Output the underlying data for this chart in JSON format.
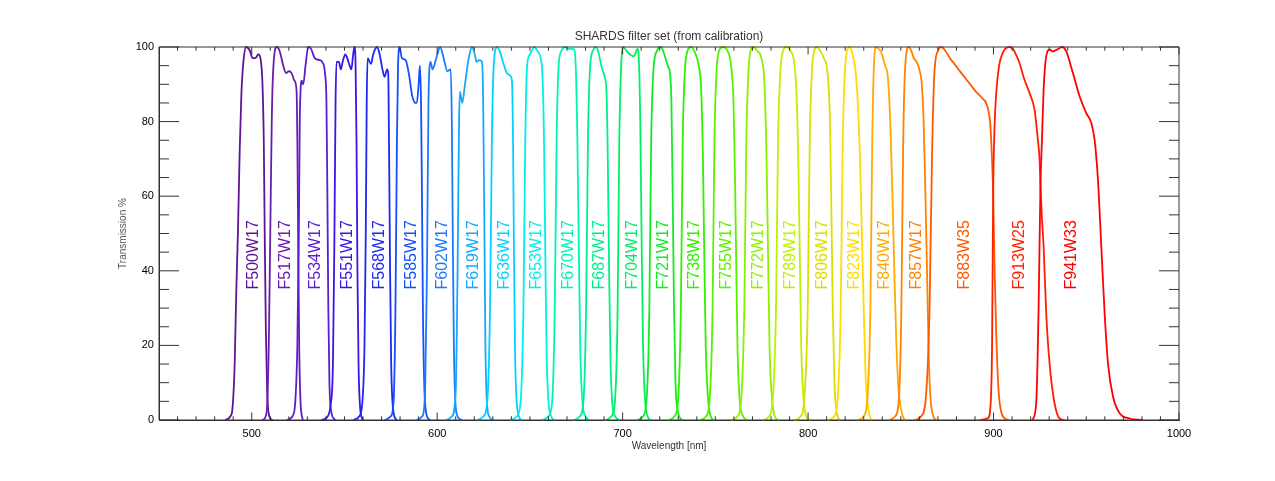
{
  "chart_data": {
    "type": "line",
    "title": "SHARDS filter set (from calibration)",
    "xlabel": "Wavelength [nm]",
    "ylabel": "Transmission %",
    "marker": "none",
    "line_style": "solid",
    "xlim": [
      450,
      1000
    ],
    "ylim": [
      0,
      100
    ],
    "xticks": [
      {
        "value": 460,
        "label": null
      },
      {
        "value": 470,
        "label": null
      },
      {
        "value": 480,
        "label": null
      },
      {
        "value": 490,
        "label": null
      },
      500,
      {
        "value": 510,
        "label": null
      },
      {
        "value": 520,
        "label": null
      },
      {
        "value": 530,
        "label": null
      },
      {
        "value": 540,
        "label": null
      },
      {
        "value": 550,
        "label": null
      },
      {
        "value": 560,
        "label": null
      },
      {
        "value": 570,
        "label": null
      },
      {
        "value": 580,
        "label": null
      },
      {
        "value": 590,
        "label": null
      },
      600,
      {
        "value": 610,
        "label": null
      },
      {
        "value": 620,
        "label": null
      },
      {
        "value": 630,
        "label": null
      },
      {
        "value": 640,
        "label": null
      },
      {
        "value": 650,
        "label": null
      },
      {
        "value": 660,
        "label": null
      },
      {
        "value": 670,
        "label": null
      },
      {
        "value": 680,
        "label": null
      },
      {
        "value": 690,
        "label": null
      },
      700,
      {
        "value": 710,
        "label": null
      },
      {
        "value": 720,
        "label": null
      },
      {
        "value": 730,
        "label": null
      },
      {
        "value": 740,
        "label": null
      },
      {
        "value": 750,
        "label": null
      },
      {
        "value": 760,
        "label": null
      },
      {
        "value": 770,
        "label": null
      },
      {
        "value": 780,
        "label": null
      },
      {
        "value": 790,
        "label": null
      },
      800,
      {
        "value": 810,
        "label": null
      },
      {
        "value": 820,
        "label": null
      },
      {
        "value": 830,
        "label": null
      },
      {
        "value": 840,
        "label": null
      },
      {
        "value": 850,
        "label": null
      },
      {
        "value": 860,
        "label": null
      },
      {
        "value": 870,
        "label": null
      },
      {
        "value": 880,
        "label": null
      },
      {
        "value": 890,
        "label": null
      },
      900,
      {
        "value": 910,
        "label": null
      },
      {
        "value": 920,
        "label": null
      },
      {
        "value": 930,
        "label": null
      },
      {
        "value": 940,
        "label": null
      },
      {
        "value": 950,
        "label": null
      },
      {
        "value": 960,
        "label": null
      },
      {
        "value": 970,
        "label": null
      },
      {
        "value": 980,
        "label": null
      },
      {
        "value": 990,
        "label": null
      },
      1000
    ],
    "yticks": [
      0,
      {
        "value": 5,
        "label": null
      },
      {
        "value": 10,
        "label": null
      },
      {
        "value": 15,
        "label": null
      },
      20,
      {
        "value": 25,
        "label": null
      },
      {
        "value": 30,
        "label": null
      },
      {
        "value": 35,
        "label": null
      },
      40,
      {
        "value": 45,
        "label": null
      },
      {
        "value": 50,
        "label": null
      },
      {
        "value": 55,
        "label": null
      },
      60,
      {
        "value": 65,
        "label": null
      },
      {
        "value": 70,
        "label": null
      },
      {
        "value": 75,
        "label": null
      },
      80,
      {
        "value": 85,
        "label": null
      },
      {
        "value": 90,
        "label": null
      },
      {
        "value": 95,
        "label": null
      },
      100
    ],
    "series": [
      {
        "name": "F500W17",
        "color": "#5f1496",
        "x": [
          486,
          488.5,
          489.6,
          490.8,
          491.7,
          492.6,
          493.5,
          494.4,
          495.5,
          497,
          499,
          500.5,
          502,
          503.5,
          505,
          505.8,
          506.5,
          507,
          507.6,
          508.3,
          509.5,
          511
        ],
        "values": [
          0,
          1,
          3,
          15,
          35,
          51,
          72,
          87,
          96,
          100,
          99,
          97,
          97,
          98,
          96,
          90,
          75,
          50,
          25,
          8,
          1,
          0
        ]
      },
      {
        "name": "F517W17",
        "color": "#6a1cb0",
        "x": [
          506,
          508,
          509.2,
          510,
          510.8,
          511.5,
          513.5,
          515,
          517,
          518.5,
          520,
          521.5,
          523,
          524.2,
          524.7,
          525.1,
          525.6,
          526.3,
          527.5
        ],
        "values": [
          0,
          2,
          20,
          50,
          80,
          93,
          100,
          99,
          95,
          93,
          93.5,
          93,
          91,
          88,
          70,
          45,
          20,
          5,
          0
        ]
      },
      {
        "name": "F534W17",
        "color": "#5a1ed2",
        "x": [
          519,
          522,
          523.5,
          524.6,
          525.4,
          525.9,
          526.3,
          527,
          527.8,
          529,
          530.5,
          532,
          534,
          536.5,
          538,
          539.5,
          540.3,
          540.8,
          541.3,
          541.9,
          543,
          545
        ],
        "values": [
          0,
          1,
          5,
          20,
          50,
          80,
          88,
          91,
          90,
          95,
          100,
          99.5,
          97,
          96.5,
          96,
          93,
          85,
          60,
          30,
          10,
          2,
          0
        ]
      },
      {
        "name": "F551W17",
        "color": "#3c14e6",
        "x": [
          538,
          541,
          542.5,
          543.8,
          544.6,
          545.2,
          545.7,
          547,
          548,
          549,
          550.5,
          551.5,
          552.8,
          553.7,
          554.7,
          555.4,
          556,
          556.5,
          557,
          557.6,
          558.5,
          560
        ],
        "values": [
          0,
          1,
          4,
          15,
          50,
          85,
          96,
          96,
          94,
          96,
          98,
          97,
          95,
          94,
          98,
          100,
          95,
          75,
          40,
          15,
          3,
          0
        ]
      },
      {
        "name": "F568W17",
        "color": "#1e28f0",
        "x": [
          555,
          558,
          559.7,
          560.8,
          561.5,
          562,
          562.5,
          564.3,
          565.5,
          567.5,
          569,
          570.5,
          571.6,
          573,
          573.6,
          574.1,
          574.6,
          575.2,
          576.2,
          578
        ],
        "values": [
          0,
          1,
          5,
          20,
          50,
          85,
          97,
          95.5,
          98,
          100,
          98,
          94,
          92,
          94,
          93,
          70,
          40,
          15,
          3,
          0
        ]
      },
      {
        "name": "F585W17",
        "color": "#1450ff",
        "x": [
          572,
          575,
          576.5,
          577.5,
          578.3,
          578.9,
          579.7,
          581,
          583,
          585,
          586.5,
          588.3,
          589,
          590,
          590.7,
          591.3,
          591.8,
          592.3,
          593,
          594,
          596
        ],
        "values": [
          0,
          1,
          5,
          30,
          75,
          95,
          100,
          97,
          96.5,
          92,
          87,
          85,
          85,
          90,
          95,
          85,
          60,
          30,
          10,
          2,
          0
        ]
      },
      {
        "name": "F602W17",
        "color": "#1e78ff",
        "x": [
          589,
          592,
          593.5,
          594.5,
          595.3,
          596.4,
          597.5,
          599.5,
          601.6,
          603.5,
          605.5,
          607.3,
          607.9,
          608.4,
          609,
          609.8,
          611,
          613
        ],
        "values": [
          0,
          1,
          8,
          40,
          85,
          96,
          94,
          97,
          100,
          97,
          93.5,
          94,
          80,
          50,
          20,
          5,
          1,
          0
        ]
      },
      {
        "name": "F619W17",
        "color": "#14a8ff",
        "x": [
          605,
          608,
          610,
          611,
          611.8,
          612.3,
          613.5,
          615,
          617,
          618.8,
          620.3,
          621.3,
          622.5,
          624.2,
          624.8,
          625.4,
          626,
          626.8,
          628,
          630
        ],
        "values": [
          0,
          1,
          8,
          40,
          80,
          88,
          85,
          90,
          97,
          100,
          98,
          96,
          96.5,
          96,
          85,
          55,
          20,
          5,
          1,
          0
        ]
      },
      {
        "name": "F636W17",
        "color": "#00d2ff",
        "x": [
          622,
          625,
          627,
          628.5,
          629.5,
          630.5,
          632.3,
          634,
          635.5,
          637.5,
          639,
          640.3,
          640.9,
          641.4,
          642,
          643,
          645
        ],
        "values": [
          0,
          1,
          5,
          30,
          75,
          95,
          100,
          98.5,
          96,
          93,
          92.5,
          91,
          75,
          45,
          18,
          4,
          0
        ]
      },
      {
        "name": "F653W17",
        "color": "#00f0e6",
        "x": [
          640,
          643,
          645,
          646.5,
          647.5,
          648.5,
          650,
          652.3,
          654,
          655.8,
          656.8,
          657.6,
          658.3,
          659,
          660,
          661.5,
          663
        ],
        "values": [
          0,
          1,
          5,
          30,
          75,
          95,
          98,
          100,
          99,
          97,
          92,
          75,
          45,
          18,
          5,
          1,
          0
        ]
      },
      {
        "name": "F670W17",
        "color": "#00f5b4",
        "x": [
          657,
          660,
          662,
          663.4,
          664.4,
          665.5,
          667,
          669,
          671,
          673.5,
          674.7,
          675.6,
          676.4,
          677.2,
          678.3,
          680,
          682
        ],
        "values": [
          0,
          1,
          5,
          30,
          75,
          95,
          99,
          100,
          99.5,
          99.5,
          95,
          75,
          45,
          18,
          5,
          1,
          0
        ]
      },
      {
        "name": "F687W17",
        "color": "#00f08c",
        "x": [
          674,
          677,
          679,
          680.3,
          681.3,
          682.5,
          684,
          685.6,
          687,
          688.5,
          690.3,
          691.3,
          692,
          692.7,
          693.5,
          694.5,
          696,
          698
        ],
        "values": [
          0,
          1,
          6,
          30,
          75,
          95,
          99,
          100,
          98.5,
          95,
          92,
          88,
          70,
          40,
          15,
          4,
          1,
          0
        ]
      },
      {
        "name": "F704W17",
        "color": "#00f064",
        "x": [
          691,
          694,
          696,
          697.3,
          698.2,
          699.2,
          700.3,
          702,
          704,
          706,
          708,
          708.8,
          709.5,
          710.2,
          711,
          712,
          713.5,
          715
        ],
        "values": [
          0,
          1,
          6,
          30,
          75,
          95,
          100,
          99,
          98,
          97.5,
          99.5,
          96,
          80,
          50,
          20,
          6,
          1,
          0
        ]
      },
      {
        "name": "F721W17",
        "color": "#14eb28",
        "x": [
          708,
          711,
          713,
          714.4,
          715.4,
          716.5,
          718.5,
          720.7,
          722.5,
          724.3,
          725.5,
          726.3,
          727,
          727.7,
          728.5,
          730,
          732
        ],
        "values": [
          0,
          1,
          6,
          30,
          75,
          93,
          99,
          100,
          98,
          95,
          93,
          85,
          60,
          30,
          10,
          2,
          0
        ]
      },
      {
        "name": "F738W17",
        "color": "#32f000",
        "x": [
          725,
          728,
          730,
          731.4,
          732.4,
          733.5,
          735,
          737,
          739,
          741,
          742.4,
          743.3,
          744,
          744.8,
          746,
          747.5,
          749
        ],
        "values": [
          0,
          1,
          6,
          30,
          75,
          93,
          99,
          100,
          98.5,
          95,
          88,
          70,
          45,
          20,
          6,
          1,
          0
        ]
      },
      {
        "name": "F755W17",
        "color": "#5af000",
        "x": [
          742,
          745,
          747,
          748.5,
          749.5,
          750.6,
          752,
          754,
          756.5,
          758.5,
          759.8,
          760.6,
          761.3,
          762,
          763.2,
          765,
          767
        ],
        "values": [
          0,
          1,
          6,
          30,
          75,
          93,
          99,
          100,
          99,
          95,
          85,
          65,
          40,
          18,
          5,
          1,
          0
        ]
      },
      {
        "name": "F772W17",
        "color": "#8cf000",
        "x": [
          759,
          762,
          764,
          765.6,
          766.7,
          767.8,
          769,
          770.5,
          772.5,
          774.8,
          776.5,
          777.6,
          778.4,
          779.2,
          780.5,
          782,
          784
        ],
        "values": [
          0,
          1,
          6,
          30,
          75,
          93,
          99,
          100,
          99,
          97,
          90,
          70,
          45,
          20,
          6,
          1,
          0
        ]
      },
      {
        "name": "F789W17",
        "color": "#bef000",
        "x": [
          776,
          779,
          781,
          782.7,
          783.8,
          785,
          786.5,
          788.3,
          790.5,
          792.5,
          793.7,
          794.7,
          795.5,
          796.3,
          797.5,
          799,
          801
        ],
        "values": [
          0,
          1,
          6,
          30,
          75,
          93,
          99,
          100,
          99,
          96,
          88,
          70,
          45,
          20,
          6,
          1,
          0
        ]
      },
      {
        "name": "F806W17",
        "color": "#d8e000",
        "x": [
          793,
          796,
          798,
          799.8,
          800.9,
          802,
          803.3,
          804.8,
          806.5,
          808.5,
          810.5,
          811.8,
          812.6,
          813.3,
          814.2,
          815.5,
          817
        ],
        "values": [
          0,
          1,
          6,
          30,
          75,
          93,
          99,
          100,
          99,
          97,
          93,
          80,
          55,
          30,
          10,
          2,
          0
        ]
      },
      {
        "name": "F823W17",
        "color": "#ffdc00",
        "x": [
          811,
          814,
          816,
          817.6,
          818.7,
          819.8,
          821,
          822.5,
          824,
          825.5,
          826.8,
          828,
          829,
          830,
          831,
          832.5,
          834
        ],
        "values": [
          0,
          1,
          6,
          30,
          75,
          93,
          99,
          100,
          98,
          94,
          85,
          70,
          50,
          30,
          12,
          3,
          0
        ]
      },
      {
        "name": "F840W17",
        "color": "#ffaa00",
        "x": [
          827,
          830,
          832,
          833.6,
          834.6,
          835.5,
          836.7,
          838,
          839.5,
          841.5,
          843,
          844.3,
          845.5,
          846.5,
          847.5,
          848.8,
          850.5,
          852
        ],
        "values": [
          0,
          1,
          6,
          30,
          75,
          95,
          100,
          99.5,
          98.5,
          95,
          92,
          80,
          60,
          40,
          22,
          8,
          2,
          0
        ]
      },
      {
        "name": "F857W17",
        "color": "#ff8200",
        "x": [
          844,
          847,
          849,
          850.3,
          851.3,
          852.4,
          854.3,
          856,
          857,
          858.5,
          860,
          861.3,
          862.3,
          863.3,
          864.2,
          865,
          866,
          867.5,
          869
        ],
        "values": [
          0,
          1,
          6,
          30,
          75,
          95,
          100,
          98.5,
          97,
          96,
          94,
          90,
          80,
          60,
          38,
          18,
          6,
          1,
          0
        ]
      },
      {
        "name": "F883W35",
        "color": "#ff5a00",
        "x": [
          858,
          861,
          863.5,
          865.5,
          866.8,
          868,
          870,
          871.8,
          874,
          876.5,
          879,
          882,
          885,
          888,
          890,
          892.5,
          894.5,
          896,
          897.2,
          898.2,
          899.1,
          899.8,
          900.5,
          901.4,
          902.7,
          905,
          908
        ],
        "values": [
          0,
          1,
          6,
          30,
          70,
          92,
          99,
          100,
          99,
          97,
          95.4,
          93.4,
          91.5,
          89.6,
          88.3,
          87,
          86,
          85,
          83,
          79.6,
          70.7,
          60.8,
          42,
          24,
          8,
          1,
          0
        ]
      },
      {
        "name": "F913W25",
        "color": "#ff1e00",
        "x": [
          893,
          897,
          898.5,
          899.2,
          899.8,
          900.5,
          901.5,
          903,
          905,
          908.5,
          910.5,
          912.5,
          914,
          916.5,
          919.4,
          922.1,
          923.9,
          924.8,
          925.3,
          926,
          927,
          928.4,
          930.2,
          932.9,
          935.6,
          938
        ],
        "values": [
          0,
          0.5,
          5,
          20,
          61,
          78,
          88,
          95,
          98.5,
          100,
          99.5,
          97.5,
          95.7,
          91.5,
          87.7,
          83.2,
          75.1,
          70,
          63,
          55,
          46.5,
          28.6,
          15.2,
          4.5,
          0.4,
          0
        ]
      },
      {
        "name": "F941W33",
        "color": "#ff0000",
        "x": [
          921,
          923,
          924.3,
          925.3,
          926.1,
          927,
          928.4,
          930.2,
          932,
          934.2,
          937.1,
          939.2,
          942.8,
          946.4,
          950,
          952.7,
          954.5,
          956.3,
          958.1,
          959.9,
          961.7,
          964.4,
          968,
          973.4,
          980
        ],
        "values": [
          0,
          4.5,
          30,
          63,
          75,
          88.5,
          97.5,
          99.3,
          98.8,
          99.3,
          100,
          98.8,
          93,
          86.8,
          82.3,
          79.6,
          75.1,
          64.4,
          46.5,
          28.6,
          15.2,
          6.3,
          1.8,
          0.4,
          0
        ]
      }
    ]
  }
}
